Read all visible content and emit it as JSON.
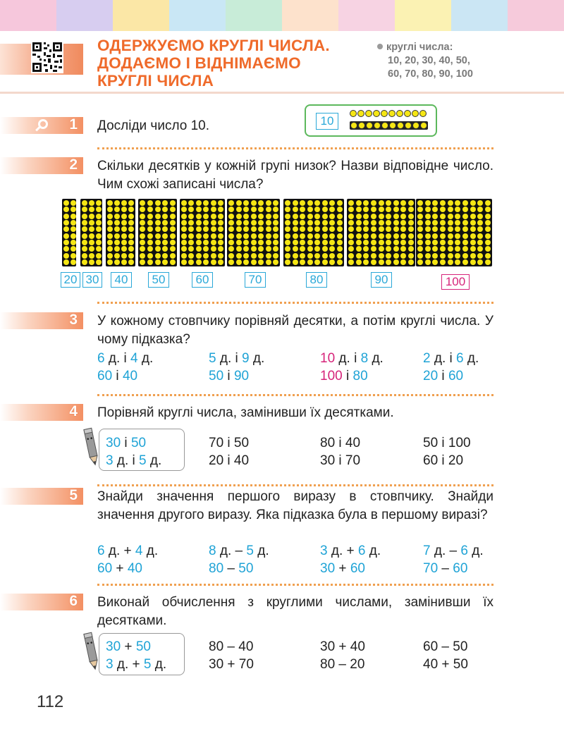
{
  "strip_colors": [
    "#f6c7dc",
    "#d7cdf0",
    "#fbe7a6",
    "#c9e7f5",
    "#c8ecd8",
    "#fde2cc",
    "#f7d3e3",
    "#fbf2b3",
    "#cbe6f4",
    "#f6cadb"
  ],
  "header": {
    "title_lines": [
      "ОДЕРЖУЄМО КРУГЛІ ЧИСЛА.",
      "ДОДАЄМО І ВІДНІМАЄМО",
      "КРУГЛІ ЧИСЛА"
    ],
    "key_label": "круглі числа:",
    "key_line1": "10, 20, 30, 40, 50,",
    "key_line2": "60, 70, 80, 90, 100"
  },
  "task1": {
    "num": "1",
    "text": "Досліди число 10.",
    "box_label": "10"
  },
  "task2": {
    "num": "2",
    "text": "Скільки десятків у кожній групі низок? Назви відповідне число. Чим схожі записані числа?",
    "labels": [
      "20",
      "30",
      "40",
      "50",
      "60",
      "70",
      "80",
      "90",
      "100"
    ]
  },
  "task3": {
    "num": "3",
    "text": "У кожному стовпчику порівняй десятки, а потім круглі числа. У чому підказка?",
    "d": "д.",
    "i": "і",
    "cols": [
      {
        "a": "6",
        "b": "4",
        "n1": "60",
        "n2": "40"
      },
      {
        "a": "5",
        "b": "9",
        "n1": "50",
        "n2": "90"
      },
      {
        "a": "10",
        "b": "8",
        "n1": "100",
        "n2": "80"
      },
      {
        "a": "2",
        "b": "6",
        "n1": "20",
        "n2": "60"
      }
    ]
  },
  "task4": {
    "num": "4",
    "text": "Порівняй круглі числа, замінивши їх десятками.",
    "hint_top": [
      "30",
      "і",
      "50"
    ],
    "hint_bottom": [
      "3",
      "д.",
      "і",
      "5",
      "д."
    ],
    "pairs": [
      [
        "70 і 50",
        "20 і 40"
      ],
      [
        "80 і 40",
        "30 і 70"
      ],
      [
        "50 і 100",
        "60 і 20"
      ]
    ]
  },
  "task5": {
    "num": "5",
    "text": "Знайди значення першого виразу в стовпчику. Знайди значення другого виразу. Яка підказка була в першому виразі?",
    "cols": [
      {
        "a": "6",
        "op": "+",
        "b": "4",
        "n1": "60",
        "n2": "40"
      },
      {
        "a": "8",
        "op": "–",
        "b": "5",
        "n1": "80",
        "n2": "50"
      },
      {
        "a": "3",
        "op": "+",
        "b": "6",
        "n1": "30",
        "n2": "60"
      },
      {
        "a": "7",
        "op": "–",
        "b": "6",
        "n1": "70",
        "n2": "60"
      }
    ]
  },
  "task6": {
    "num": "6",
    "text": "Виконай обчислення з круглими числами, замінивши їх десятками.",
    "hint_top": [
      "30",
      "+",
      "50"
    ],
    "hint_bottom": [
      "3",
      "д.",
      "+",
      "5",
      "д."
    ],
    "pairs": [
      [
        "80 – 40",
        "30 + 70"
      ],
      [
        "30 + 40",
        "80 – 20"
      ],
      [
        "60 – 50",
        "40 + 50"
      ]
    ]
  },
  "page_number": "112"
}
